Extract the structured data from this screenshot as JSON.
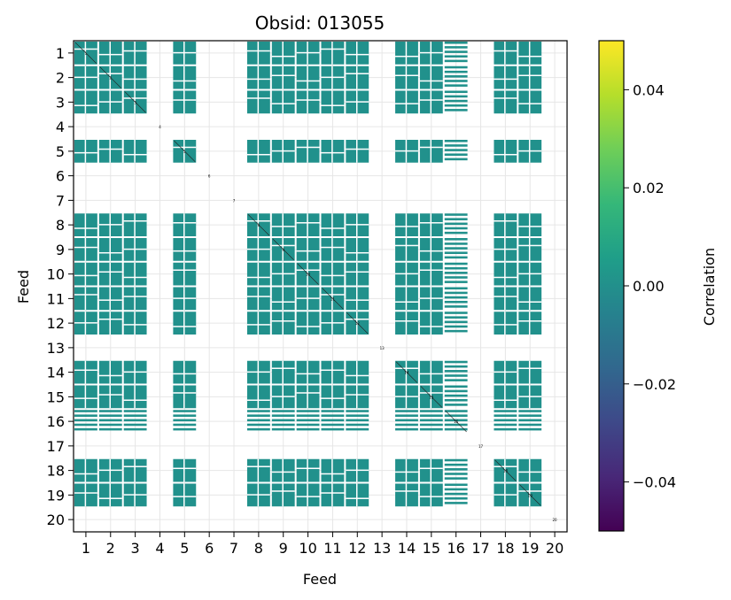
{
  "chart_data": {
    "type": "heatmap",
    "title": "Obsid: 013055",
    "xlabel": "Feed",
    "ylabel": "Feed",
    "x_ticks": [
      "1",
      "2",
      "3",
      "4",
      "5",
      "6",
      "7",
      "8",
      "9",
      "10",
      "11",
      "12",
      "13",
      "14",
      "15",
      "16",
      "17",
      "18",
      "19",
      "20"
    ],
    "y_ticks": [
      "1",
      "2",
      "3",
      "4",
      "5",
      "6",
      "7",
      "8",
      "9",
      "10",
      "11",
      "12",
      "13",
      "14",
      "15",
      "16",
      "17",
      "18",
      "19",
      "20"
    ],
    "grid": true,
    "colorbar": {
      "label": "Correlation",
      "min": -0.05,
      "max": 0.05,
      "ticks": [
        "0.04",
        "0.02",
        "0.00",
        "−0.02",
        "−0.04"
      ],
      "tick_values": [
        0.04,
        0.02,
        0.0,
        -0.02,
        -0.04
      ],
      "colormap": "viridis",
      "colormap_stops": [
        "#440154",
        "#482878",
        "#3e4989",
        "#31688e",
        "#26828e",
        "#1f9e89",
        "#35b779",
        "#6ece58",
        "#b5de2b",
        "#fde725"
      ]
    },
    "cell_color": "#21918c",
    "active_feeds": [
      1,
      2,
      3,
      5,
      8,
      9,
      10,
      11,
      12,
      14,
      15,
      16,
      18,
      19
    ],
    "partial_feeds": [
      16
    ],
    "inactive_feeds": [
      4,
      6,
      7,
      13,
      17,
      20
    ],
    "block_value": 0.0,
    "diagonal_labels": [
      "1",
      "2",
      "3",
      "4",
      "5",
      "6",
      "7",
      "8",
      "9",
      "10",
      "11",
      "12",
      "13",
      "14",
      "15",
      "16",
      "17",
      "18",
      "19",
      "20"
    ]
  }
}
